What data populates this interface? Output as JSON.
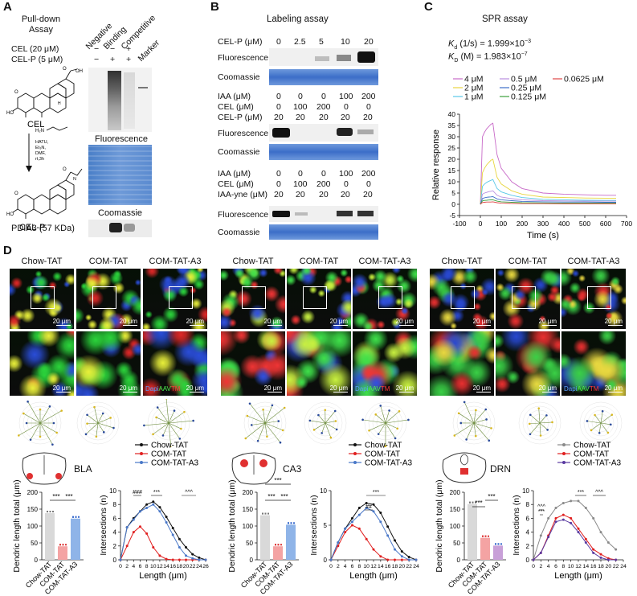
{
  "panels": {
    "A": "A",
    "B": "B",
    "C": "C",
    "D": "D"
  },
  "panelA": {
    "pulldown": [
      "Pull-down",
      "Assay"
    ],
    "lanes": [
      "Negative",
      "Binding",
      "Competitive",
      "Marker"
    ],
    "row_cel": "CEL (20 μM)",
    "row_celp": "CEL-P (5 μM)",
    "cel_signs": [
      "−",
      "−",
      "+"
    ],
    "celp_signs": [
      "−",
      "+",
      "+"
    ],
    "cel_name": "CEL",
    "celp_name": "CEL-P",
    "reagents": [
      "HATU,",
      "Et₃N,",
      "DMF,",
      "rt,3h"
    ],
    "amine": "H₂N",
    "fluorescence": "Fluorescence",
    "coomassie": "Coomassie",
    "pdia3": "PDIA3 (57 KDa)",
    "chem_labels": {
      "ho": "HO",
      "o": "O",
      "oh": "OH",
      "h": "H",
      "nh": "N"
    }
  },
  "panelB": {
    "title": "Labeling assay",
    "g1": {
      "label": "CEL-P (μM)",
      "values": [
        "0",
        "2.5",
        "5",
        "10",
        "20"
      ]
    },
    "g2": {
      "rows": [
        {
          "label": "IAA (μM)",
          "values": [
            "0",
            "0",
            "0",
            "100",
            "200"
          ]
        },
        {
          "label": "CEL (μM)",
          "values": [
            "0",
            "100",
            "200",
            "0",
            "0"
          ]
        },
        {
          "label": "CEL-P (μM)",
          "values": [
            "20",
            "20",
            "20",
            "20",
            "20"
          ]
        }
      ]
    },
    "g3": {
      "rows": [
        {
          "label": "IAA (μM)",
          "values": [
            "0",
            "0",
            "0",
            "100",
            "200"
          ]
        },
        {
          "label": "CEL (μM)",
          "values": [
            "0",
            "100",
            "200",
            "0",
            "0"
          ]
        },
        {
          "label": "IAA-yne (μM)",
          "values": [
            "20",
            "20",
            "20",
            "20",
            "20"
          ]
        }
      ]
    },
    "fluorescence": "Fluorescence",
    "coomassie": "Coomassie"
  },
  "panelC": {
    "title": "SPR assay",
    "ka": "(1/s) = 1.999×10",
    "ka_exp": "−3",
    "kd": "(M) = 1.983×10",
    "kd_exp": "−7",
    "ka_sym": "K",
    "ka_sub": "d",
    "kd_sym": "K",
    "kd_sub": "D",
    "legend": [
      {
        "label": "4 μM",
        "color": "#c86ac8"
      },
      {
        "label": "0.5 μM",
        "color": "#b98de0"
      },
      {
        "label": "0.0625 μM",
        "color": "#e04646"
      },
      {
        "label": "2 μM",
        "color": "#e8d640"
      },
      {
        "label": "0.25 μM",
        "color": "#3c6ec8"
      },
      {
        "label": "1 μM",
        "color": "#58c8e8"
      },
      {
        "label": "0.125 μM",
        "color": "#3ca03c"
      }
    ],
    "xlabel": "Time (s)",
    "ylabel": "Relative response"
  },
  "chart_data": [
    {
      "type": "line",
      "title": "SPR assay",
      "xlabel": "Time (s)",
      "ylabel": "Relative response",
      "xlim": [
        -100,
        700
      ],
      "ylim": [
        -5,
        40
      ],
      "xticks": [
        -100,
        0,
        100,
        200,
        300,
        400,
        500,
        600,
        700
      ],
      "yticks": [
        -5,
        0,
        5,
        10,
        15,
        20,
        25,
        30,
        35,
        40
      ],
      "series": [
        {
          "name": "4 μM",
          "color": "#c86ac8",
          "x": [
            0,
            10,
            20,
            30,
            40,
            50,
            60,
            80,
            100,
            150,
            200,
            300,
            400,
            500,
            600,
            650
          ],
          "y": [
            0,
            30,
            32,
            33.5,
            34.5,
            35.5,
            36,
            22,
            16,
            10,
            7,
            5,
            4.5,
            4.2,
            4,
            4
          ]
        },
        {
          "name": "2 μM",
          "color": "#e8d640",
          "x": [
            0,
            10,
            20,
            30,
            40,
            50,
            60,
            80,
            100,
            150,
            200,
            300,
            400,
            500,
            600,
            650
          ],
          "y": [
            0,
            14,
            16,
            17.5,
            18.5,
            19.5,
            20,
            12,
            9,
            6,
            4.5,
            3.2,
            3,
            2.8,
            2.7,
            2.7
          ]
        },
        {
          "name": "1 μM",
          "color": "#58c8e8",
          "x": [
            0,
            10,
            20,
            30,
            40,
            50,
            60,
            80,
            100,
            150,
            200,
            300,
            400,
            500,
            600,
            650
          ],
          "y": [
            0,
            8,
            9,
            9.7,
            10.2,
            10.6,
            11,
            7,
            5.5,
            4,
            3,
            2.2,
            2,
            1.8,
            1.7,
            1.7
          ]
        },
        {
          "name": "0.5 μM",
          "color": "#b98de0",
          "x": [
            0,
            10,
            20,
            30,
            40,
            50,
            60,
            80,
            100,
            150,
            200,
            300,
            400,
            500,
            600,
            650
          ],
          "y": [
            0,
            4.5,
            5,
            5.3,
            5.6,
            5.8,
            6,
            4,
            3.2,
            2.5,
            2,
            1.6,
            1.5,
            1.4,
            1.4,
            1.4
          ]
        },
        {
          "name": "0.25 μM",
          "color": "#3c6ec8",
          "x": [
            0,
            10,
            20,
            30,
            40,
            50,
            60,
            80,
            100,
            150,
            200,
            300,
            400,
            500,
            600,
            650
          ],
          "y": [
            0,
            2.6,
            2.9,
            3.1,
            3.2,
            3.3,
            3.4,
            2.4,
            2,
            1.6,
            1.3,
            1.1,
            1,
            1,
            0.9,
            0.9
          ]
        },
        {
          "name": "0.125 μM",
          "color": "#3ca03c",
          "x": [
            0,
            10,
            20,
            30,
            40,
            50,
            60,
            80,
            100,
            150,
            200,
            300,
            400,
            500,
            600,
            650
          ],
          "y": [
            0,
            1.5,
            1.7,
            1.8,
            1.9,
            1.95,
            2,
            1.4,
            1.1,
            0.9,
            0.7,
            0.6,
            0.5,
            0.5,
            0.5,
            0.5
          ]
        },
        {
          "name": "0.0625 μM",
          "color": "#e04646",
          "x": [
            0,
            10,
            20,
            30,
            40,
            50,
            60,
            80,
            100,
            150,
            200,
            300,
            400,
            500,
            600,
            650
          ],
          "y": [
            0,
            0.8,
            0.9,
            1,
            1,
            1,
            1.1,
            0.7,
            0.5,
            0.4,
            0.3,
            0.3,
            0.2,
            0.2,
            0.2,
            0.2
          ]
        }
      ]
    },
    {
      "type": "bar",
      "region": "BLA",
      "ylabel": "Dendric length total (μm)",
      "ylim": [
        0,
        200
      ],
      "yticks": [
        0,
        50,
        100,
        150,
        200
      ],
      "categories": [
        "Chow-TAT",
        "COM-TAT",
        "COM-TAT-A3"
      ],
      "values": [
        138,
        40,
        122
      ],
      "colors": [
        "#d9d9d9",
        "#f4a3a3",
        "#8fb4e8"
      ],
      "sig": [
        "***",
        "***"
      ]
    },
    {
      "type": "line",
      "region": "BLA",
      "xlabel": "Length (μm)",
      "ylabel": "Intersections (n)",
      "xlim": [
        0,
        26
      ],
      "ylim": [
        0,
        10
      ],
      "xticks": [
        0,
        2,
        4,
        6,
        8,
        10,
        12,
        14,
        16,
        18,
        20,
        22,
        24,
        26
      ],
      "yticks": [
        0,
        2,
        4,
        6,
        8,
        10
      ],
      "annotations": [
        "###",
        "***",
        "^^^"
      ],
      "series": [
        {
          "name": "Chow-TAT",
          "color": "#111111",
          "x": [
            0,
            2,
            4,
            6,
            8,
            10,
            12,
            14,
            16,
            18,
            20,
            22,
            24,
            26
          ],
          "y": [
            0,
            4.7,
            6,
            7,
            8,
            8.4,
            7.6,
            6.2,
            4.6,
            3,
            1.8,
            0.8,
            0.3,
            0
          ]
        },
        {
          "name": "COM-TAT",
          "color": "#e02020",
          "x": [
            0,
            2,
            4,
            6,
            8,
            10,
            12,
            14,
            16,
            18,
            20,
            22,
            24,
            26
          ],
          "y": [
            0,
            2,
            4,
            4.8,
            3.8,
            1.8,
            0.6,
            0.1,
            0,
            0,
            0,
            0,
            0,
            0
          ]
        },
        {
          "name": "COM-TAT-A3",
          "color": "#4a78c8",
          "x": [
            0,
            2,
            4,
            6,
            8,
            10,
            12,
            14,
            16,
            18,
            20,
            22,
            24,
            26
          ],
          "y": [
            0,
            4.7,
            5.8,
            7,
            7.5,
            8,
            7,
            5.4,
            3.6,
            1.8,
            0.6,
            0.2,
            0,
            0
          ]
        }
      ]
    },
    {
      "type": "bar",
      "region": "CA3",
      "ylabel": "Dendric length total (μm)",
      "ylim": [
        0,
        200
      ],
      "yticks": [
        0,
        50,
        100,
        150,
        200
      ],
      "categories": [
        "Chow-TAT",
        "COM-TAT",
        "COM-TAT-A3"
      ],
      "values": [
        132,
        40,
        104
      ],
      "colors": [
        "#d9d9d9",
        "#f4a3a3",
        "#8fb4e8"
      ],
      "sig": [
        "***",
        "***",
        "***"
      ]
    },
    {
      "type": "line",
      "region": "CA3",
      "xlabel": "Length (μm)",
      "ylabel": "Intersections (n)",
      "xlim": [
        0,
        24
      ],
      "ylim": [
        0,
        10
      ],
      "xticks": [
        0,
        2,
        4,
        6,
        8,
        10,
        12,
        14,
        16,
        18,
        20,
        22,
        24
      ],
      "yticks": [
        0,
        5,
        10
      ],
      "annotations": [
        "***",
        "##"
      ],
      "series": [
        {
          "name": "Chow-TAT",
          "color": "#111111",
          "x": [
            0,
            2,
            4,
            6,
            8,
            10,
            12,
            14,
            16,
            18,
            20,
            22,
            24
          ],
          "y": [
            0,
            2.5,
            4.5,
            6,
            7.5,
            8.2,
            8,
            6.8,
            4.8,
            2.8,
            1.2,
            0.4,
            0
          ]
        },
        {
          "name": "COM-TAT",
          "color": "#e02020",
          "x": [
            0,
            2,
            4,
            6,
            8,
            10,
            12,
            14,
            16,
            18,
            20,
            22,
            24
          ],
          "y": [
            0,
            2,
            4,
            5,
            4.5,
            3,
            1.5,
            0.5,
            0,
            0,
            0,
            0,
            0
          ]
        },
        {
          "name": "COM-TAT-A3",
          "color": "#4a78c8",
          "x": [
            0,
            2,
            4,
            6,
            8,
            10,
            12,
            14,
            16,
            18,
            20,
            22,
            24
          ],
          "y": [
            0,
            2.5,
            4.5,
            5.5,
            6.5,
            7.5,
            7,
            5.5,
            3.5,
            1.5,
            0.5,
            0,
            0
          ]
        }
      ]
    },
    {
      "type": "bar",
      "region": "DRN",
      "ylabel": "Dendric length total (μm)",
      "ylim": [
        0,
        200
      ],
      "yticks": [
        0,
        50,
        100,
        150,
        200
      ],
      "categories": [
        "Chow-TAT",
        "COM-TAT",
        "COM-TAT-A3"
      ],
      "values": [
        165,
        65,
        42
      ],
      "colors": [
        "#d9d9d9",
        "#f4a3a3",
        "#c8a0d8"
      ],
      "sig": [
        "***",
        "***"
      ]
    },
    {
      "type": "line",
      "region": "DRN",
      "xlabel": "Length (μm)",
      "ylabel": "Intersections (n)",
      "xlim": [
        0,
        24
      ],
      "ylim": [
        0,
        10
      ],
      "xticks": [
        0,
        2,
        4,
        6,
        8,
        10,
        12,
        14,
        16,
        18,
        20,
        22,
        24
      ],
      "yticks": [
        0,
        2,
        4,
        6,
        8,
        10
      ],
      "annotations": [
        "^^^",
        "***",
        "***",
        "^^^"
      ],
      "series": [
        {
          "name": "Chow-TAT",
          "color": "#8a8a8a",
          "x": [
            0,
            2,
            4,
            6,
            8,
            10,
            12,
            14,
            16,
            18,
            20,
            22
          ],
          "y": [
            0,
            3.5,
            6,
            7.5,
            8.2,
            8.5,
            8.5,
            7.5,
            6,
            4,
            2.5,
            1.5
          ]
        },
        {
          "name": "COM-TAT",
          "color": "#e02020",
          "x": [
            0,
            2,
            4,
            6,
            8,
            10,
            12,
            14,
            16,
            18,
            20,
            22
          ],
          "y": [
            0,
            1,
            3.5,
            6,
            6.5,
            6,
            4.5,
            3,
            1.5,
            0.8,
            0.2,
            0
          ]
        },
        {
          "name": "COM-TAT-A3",
          "color": "#5a3aa0",
          "x": [
            0,
            2,
            4,
            6,
            8,
            10,
            12,
            14,
            16,
            18,
            20,
            22
          ],
          "y": [
            0,
            1,
            3.3,
            5.5,
            5.8,
            5.3,
            4,
            2.5,
            1,
            0.3,
            0,
            0
          ]
        }
      ]
    }
  ],
  "panelD": {
    "groups": [
      {
        "cols": [
          "Chow-TAT",
          "COM-TAT",
          "COM-TAT-A3"
        ],
        "region": "BLA"
      },
      {
        "cols": [
          "Chow-TAT",
          "COM-TAT",
          "COM-TAT-A3"
        ],
        "region": "CA3"
      },
      {
        "cols": [
          "Chow-TAT",
          "COM-TAT",
          "COM-TAT-A3"
        ],
        "region": "DRN"
      }
    ],
    "scale": "20 μm",
    "stain": {
      "dapi": "Dapi",
      "aav": "AAV",
      "tm": "TM"
    },
    "legend": [
      "Chow-TAT",
      "COM-TAT",
      "COM-TAT-A3"
    ],
    "legend_colors": [
      [
        "#111111",
        "#e02020",
        "#4a78c8"
      ],
      [
        "#111111",
        "#e02020",
        "#4a78c8"
      ],
      [
        "#8a8a8a",
        "#e02020",
        "#5a3aa0"
      ]
    ]
  }
}
